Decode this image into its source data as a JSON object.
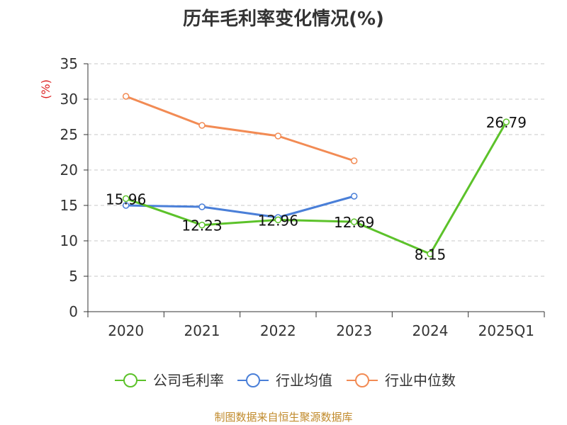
{
  "chart_data": {
    "type": "line",
    "title": "历年毛利率变化情况(%)",
    "ylabel": "(%)",
    "xlabel": "",
    "categories": [
      "2020",
      "2021",
      "2022",
      "2023",
      "2024",
      "2025Q1"
    ],
    "ylim": [
      0,
      35
    ],
    "yticks": [
      0,
      5,
      10,
      15,
      20,
      25,
      30,
      35
    ],
    "grid": true,
    "legend_position": "bottom",
    "series": [
      {
        "name": "公司毛利率",
        "color": "#5cc22a",
        "values": [
          15.96,
          12.23,
          12.96,
          12.69,
          8.15,
          26.79
        ],
        "labels": [
          "15.96",
          "12.23",
          "12.96",
          "12.69",
          "8.15",
          "26.79"
        ]
      },
      {
        "name": "行业均值",
        "color": "#4a7fd8",
        "values": [
          15.0,
          14.8,
          13.3,
          16.3,
          null,
          null
        ]
      },
      {
        "name": "行业中位数",
        "color": "#f28b54",
        "values": [
          30.4,
          26.3,
          24.8,
          21.3,
          null,
          null
        ]
      }
    ],
    "source": "制图数据来自恒生聚源数据库"
  }
}
